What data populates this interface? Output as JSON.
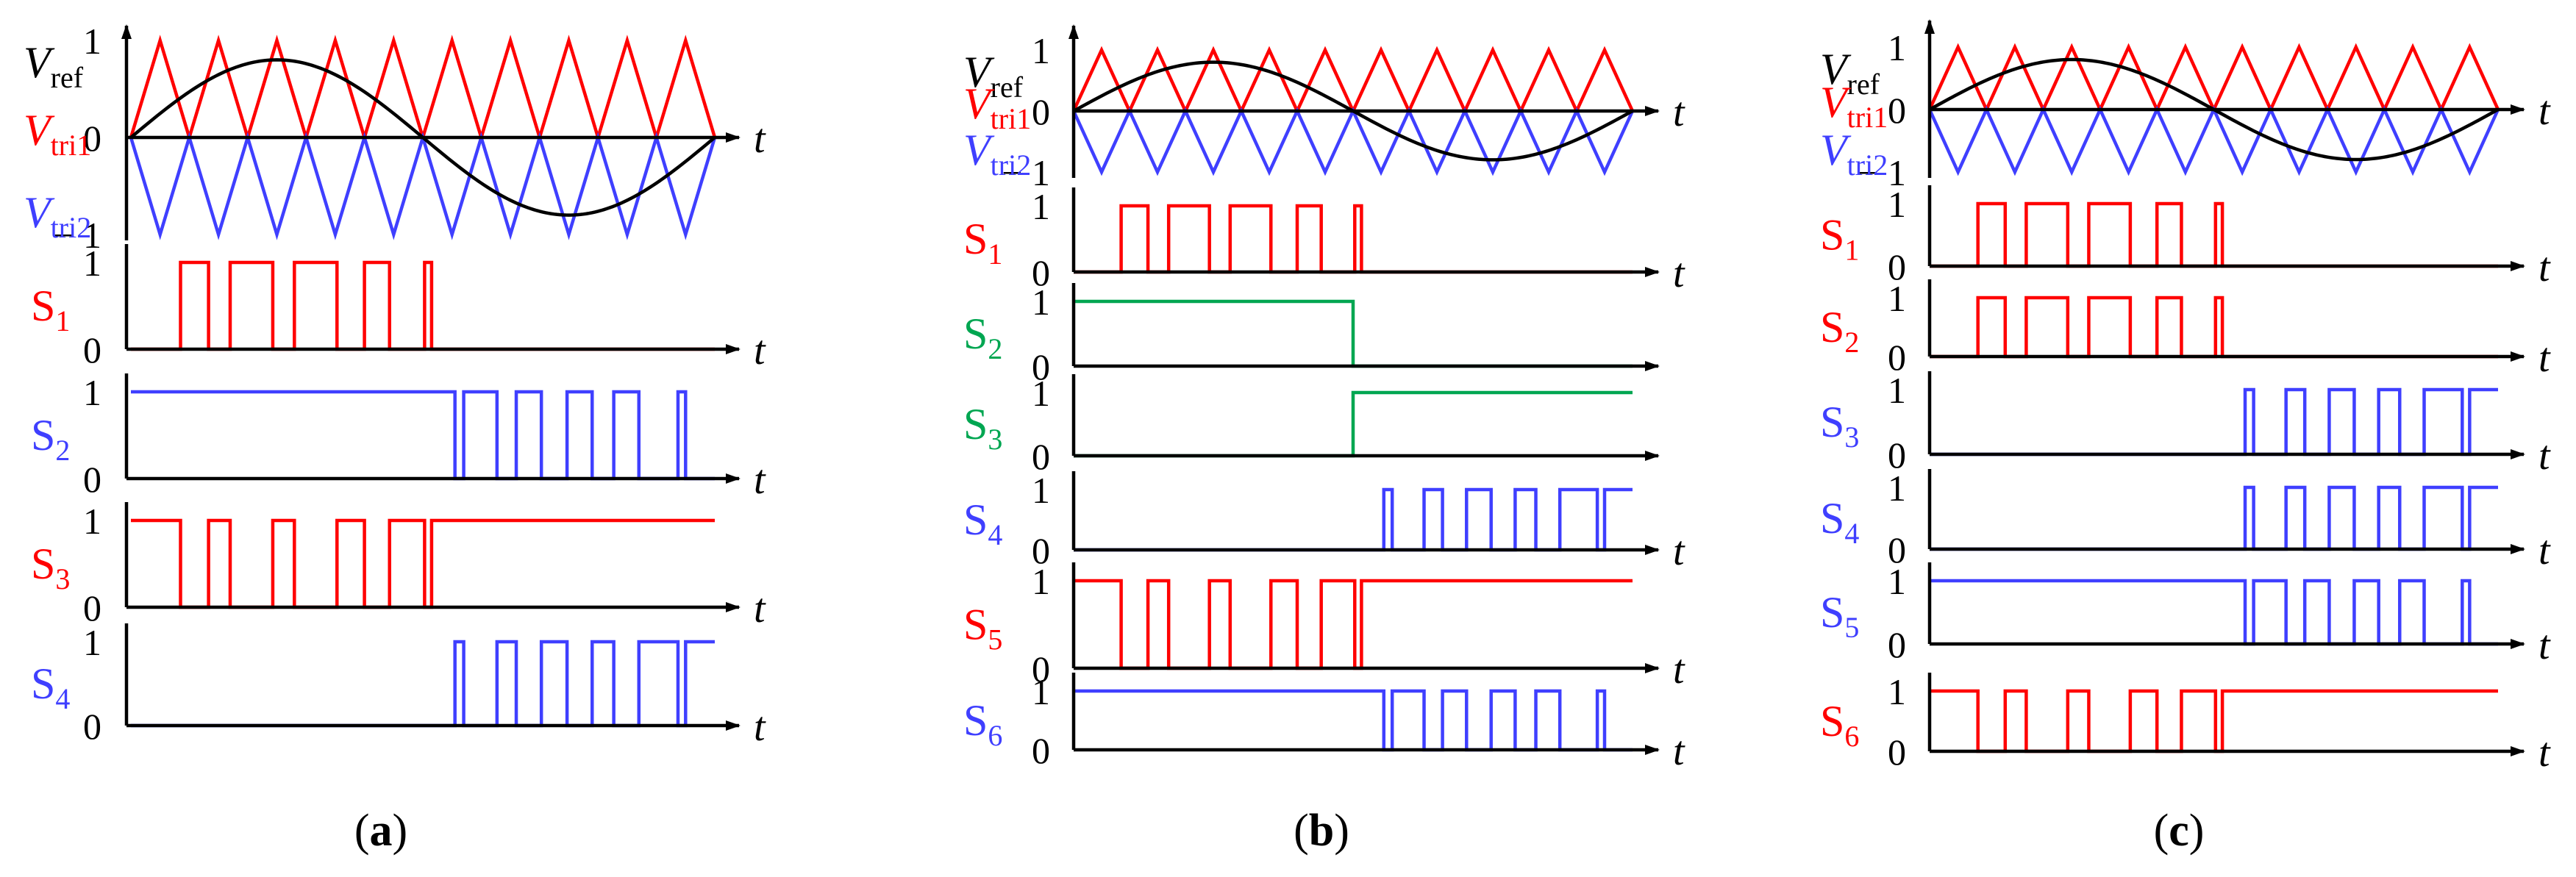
{
  "colors": {
    "red": "#ff0000",
    "blue": "#3f3fff",
    "green": "#00a651",
    "black": "#000000"
  },
  "panels": [
    {
      "caption_open": "(",
      "caption_letter": "a",
      "caption_close": ")",
      "carrier": {
        "vref_main": "V",
        "vref_sub": "ref",
        "vtri1_main": "V",
        "vtri1_sub": "tri1",
        "vtri2_main": "V",
        "vtri2_sub": "tri2",
        "tick_pos": "1",
        "tick_zero": "0",
        "tick_neg": "− 1",
        "t_label": "t"
      },
      "rows": [
        {
          "label_main": "S",
          "label_sub": "1",
          "color": "red",
          "tick_one": "1",
          "tick_zero": "0",
          "t_label": "t",
          "wave": {
            "initial": 0,
            "toggles": [
              0.085,
              0.133,
              0.17,
              0.243,
              0.28,
              0.353,
              0.4,
              0.443,
              0.503,
              0.515
            ]
          }
        },
        {
          "label_main": "S",
          "label_sub": "2",
          "color": "blue",
          "tick_one": "1",
          "tick_zero": "0",
          "t_label": "t",
          "wave": {
            "initial": 1,
            "toggles": [
              0.555,
              0.57,
              0.627,
              0.66,
              0.703,
              0.747,
              0.79,
              0.827,
              0.87,
              0.937,
              0.95
            ]
          }
        },
        {
          "label_main": "S",
          "label_sub": "3",
          "color": "red",
          "tick_one": "1",
          "tick_zero": "0",
          "t_label": "t",
          "wave": {
            "initial": 1,
            "toggles": [
              0.085,
              0.133,
              0.17,
              0.243,
              0.28,
              0.353,
              0.4,
              0.443,
              0.503,
              0.515
            ]
          }
        },
        {
          "label_main": "S",
          "label_sub": "4",
          "color": "blue",
          "tick_one": "1",
          "tick_zero": "0",
          "t_label": "t",
          "wave": {
            "initial": 0,
            "toggles": [
              0.555,
              0.57,
              0.627,
              0.66,
              0.703,
              0.747,
              0.79,
              0.827,
              0.87,
              0.937,
              0.95
            ]
          }
        }
      ]
    },
    {
      "caption_open": "(",
      "caption_letter": "b",
      "caption_close": ")",
      "carrier": {
        "vref_main": "V",
        "vref_sub": "ref",
        "vtri1_main": "V",
        "vtri1_sub": "tri1",
        "vtri2_main": "V",
        "vtri2_sub": "tri2",
        "tick_pos": "1",
        "tick_zero": "0",
        "tick_neg": "− 1",
        "t_label": "t"
      },
      "rows": [
        {
          "label_main": "S",
          "label_sub": "1",
          "color": "red",
          "tick_one": "1",
          "tick_zero": "0",
          "t_label": "t",
          "wave": {
            "initial": 0,
            "toggles": [
              0.085,
              0.133,
              0.17,
              0.243,
              0.28,
              0.353,
              0.4,
              0.443,
              0.503,
              0.515
            ]
          }
        },
        {
          "label_main": "S",
          "label_sub": "2",
          "color": "green",
          "tick_one": "1",
          "tick_zero": "0",
          "t_label": "",
          "wave": {
            "initial": 1,
            "toggles": [
              0.5
            ]
          }
        },
        {
          "label_main": "S",
          "label_sub": "3",
          "color": "green",
          "tick_one": "1",
          "tick_zero": "0",
          "t_label": "",
          "wave": {
            "initial": 0,
            "toggles": [
              0.5
            ]
          }
        },
        {
          "label_main": "S",
          "label_sub": "4",
          "color": "blue",
          "tick_one": "1",
          "tick_zero": "0",
          "t_label": "t",
          "wave": {
            "initial": 0,
            "toggles": [
              0.555,
              0.57,
              0.627,
              0.66,
              0.703,
              0.747,
              0.79,
              0.827,
              0.87,
              0.937,
              0.95
            ]
          }
        },
        {
          "label_main": "S",
          "label_sub": "5",
          "color": "red",
          "tick_one": "1",
          "tick_zero": "0",
          "t_label": "t",
          "wave": {
            "initial": 1,
            "toggles": [
              0.085,
              0.133,
              0.17,
              0.243,
              0.28,
              0.353,
              0.4,
              0.443,
              0.503,
              0.515
            ]
          }
        },
        {
          "label_main": "S",
          "label_sub": "6",
          "color": "blue",
          "tick_one": "1",
          "tick_zero": "0",
          "t_label": "t",
          "wave": {
            "initial": 1,
            "toggles": [
              0.555,
              0.57,
              0.627,
              0.66,
              0.703,
              0.747,
              0.79,
              0.827,
              0.87,
              0.937,
              0.95
            ]
          }
        }
      ]
    },
    {
      "caption_open": "(",
      "caption_letter": "c",
      "caption_close": ")",
      "carrier": {
        "vref_main": "V",
        "vref_sub": "ref",
        "vtri1_main": "V",
        "vtri1_sub": "tri1",
        "vtri2_main": "V",
        "vtri2_sub": "tri2",
        "tick_pos": "1",
        "tick_zero": "0",
        "tick_neg": "− 1",
        "t_label": "t"
      },
      "rows": [
        {
          "label_main": "S",
          "label_sub": "1",
          "color": "red",
          "tick_one": "1",
          "tick_zero": "0",
          "t_label": "t",
          "wave": {
            "initial": 0,
            "toggles": [
              0.085,
              0.133,
              0.17,
              0.243,
              0.28,
              0.353,
              0.4,
              0.443,
              0.503,
              0.515
            ]
          }
        },
        {
          "label_main": "S",
          "label_sub": "2",
          "color": "red",
          "tick_one": "1",
          "tick_zero": "0",
          "t_label": "t",
          "wave": {
            "initial": 0,
            "toggles": [
              0.085,
              0.133,
              0.17,
              0.243,
              0.28,
              0.353,
              0.4,
              0.443,
              0.503,
              0.515
            ]
          }
        },
        {
          "label_main": "S",
          "label_sub": "3",
          "color": "blue",
          "tick_one": "1",
          "tick_zero": "0",
          "t_label": "t",
          "wave": {
            "initial": 0,
            "toggles": [
              0.555,
              0.57,
              0.627,
              0.66,
              0.703,
              0.747,
              0.79,
              0.827,
              0.87,
              0.937,
              0.95
            ]
          }
        },
        {
          "label_main": "S",
          "label_sub": "4",
          "color": "blue",
          "tick_one": "1",
          "tick_zero": "0",
          "t_label": "t",
          "wave": {
            "initial": 0,
            "toggles": [
              0.555,
              0.57,
              0.627,
              0.66,
              0.703,
              0.747,
              0.79,
              0.827,
              0.87,
              0.937,
              0.95
            ]
          }
        },
        {
          "label_main": "S",
          "label_sub": "5",
          "color": "blue",
          "tick_one": "1",
          "tick_zero": "0",
          "t_label": "t",
          "wave": {
            "initial": 1,
            "toggles": [
              0.555,
              0.57,
              0.627,
              0.66,
              0.703,
              0.747,
              0.79,
              0.827,
              0.87,
              0.937,
              0.95
            ]
          }
        },
        {
          "label_main": "S",
          "label_sub": "6",
          "color": "red",
          "tick_one": "1",
          "tick_zero": "0",
          "t_label": "t",
          "wave": {
            "initial": 1,
            "toggles": [
              0.085,
              0.133,
              0.17,
              0.243,
              0.28,
              0.353,
              0.4,
              0.443,
              0.503,
              0.515
            ]
          }
        }
      ]
    }
  ]
}
